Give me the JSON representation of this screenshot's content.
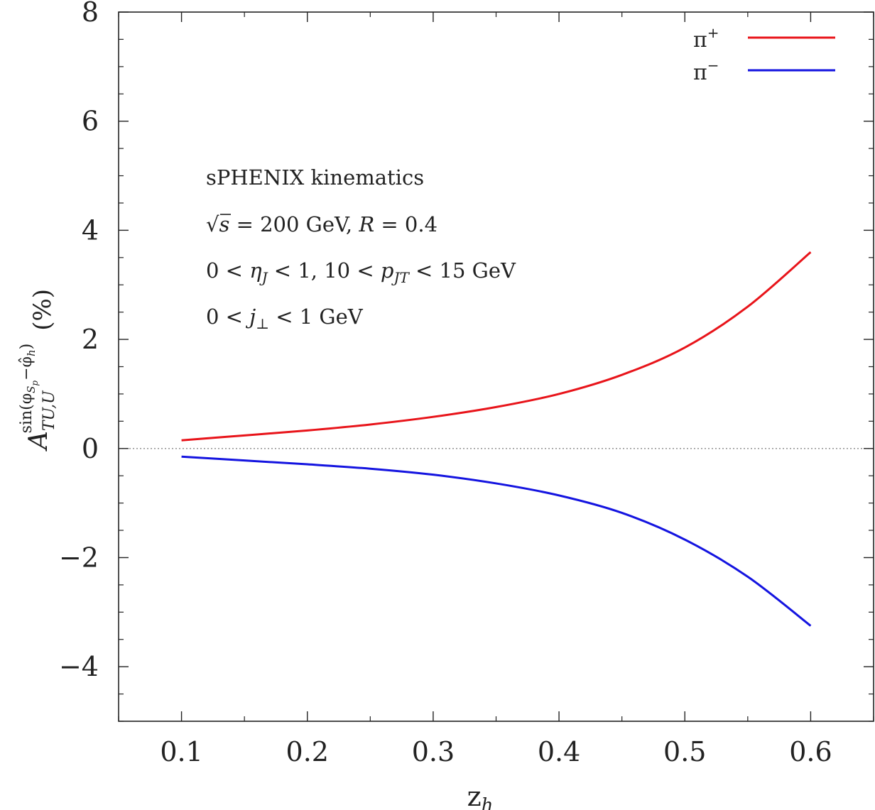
{
  "chart_data": {
    "type": "line",
    "title": "",
    "xlabel": {
      "main": "z",
      "sub": "h"
    },
    "ylabel": {
      "main": "A",
      "sub": "TU,U",
      "sup": "sin(φ",
      "sup_sub": "S",
      "sup_subsub": "p",
      "sup_rest": "−φ̂",
      "sup_sub2": "h",
      "sup_close": ")",
      "unit": "(%)"
    },
    "xlim": [
      0.05,
      0.65
    ],
    "ylim": [
      -5,
      8
    ],
    "xticks": [
      0.1,
      0.2,
      0.3,
      0.4,
      0.5,
      0.6
    ],
    "xtick_labels": [
      "0.1",
      "0.2",
      "0.3",
      "0.4",
      "0.5",
      "0.6"
    ],
    "yticks": [
      -4,
      -2,
      0,
      2,
      4,
      6,
      8
    ],
    "ytick_labels": [
      "−4",
      "−2",
      "0",
      "2",
      "4",
      "6",
      "8"
    ],
    "grid": false,
    "legend_position": "top-right",
    "zero_line": {
      "y": 0,
      "style": "dotted",
      "color": "#888888"
    },
    "series": [
      {
        "name": "π",
        "name_sup": "+",
        "color": "#e8141a",
        "x": [
          0.1,
          0.15,
          0.2,
          0.25,
          0.3,
          0.35,
          0.4,
          0.45,
          0.5,
          0.55,
          0.6
        ],
        "y": [
          0.15,
          0.24,
          0.33,
          0.44,
          0.58,
          0.76,
          1.0,
          1.35,
          1.85,
          2.6,
          3.6
        ]
      },
      {
        "name": "π",
        "name_sup": "−",
        "color": "#1414e0",
        "x": [
          0.1,
          0.15,
          0.2,
          0.25,
          0.3,
          0.35,
          0.4,
          0.45,
          0.5,
          0.55,
          0.6
        ],
        "y": [
          -0.15,
          -0.22,
          -0.29,
          -0.37,
          -0.48,
          -0.64,
          -0.86,
          -1.18,
          -1.67,
          -2.35,
          -3.25
        ]
      }
    ],
    "annotations": {
      "line1": "sPHENIX kinematics",
      "line2": {
        "sqrt": "√",
        "s": "s",
        "rest": " = 200 GeV,  ",
        "R": "R",
        "rest2": " = 0.4"
      },
      "line3": {
        "a": "0 < ",
        "eta": "η",
        "eta_sub": "J",
        "b": " < 1, 10 < ",
        "p": "p",
        "p_sub": "JT",
        "c": " < 15 GeV"
      },
      "line4": {
        "a": "0 < ",
        "j": "j",
        "j_sub": "⊥",
        "b": " < 1 GeV"
      }
    }
  }
}
